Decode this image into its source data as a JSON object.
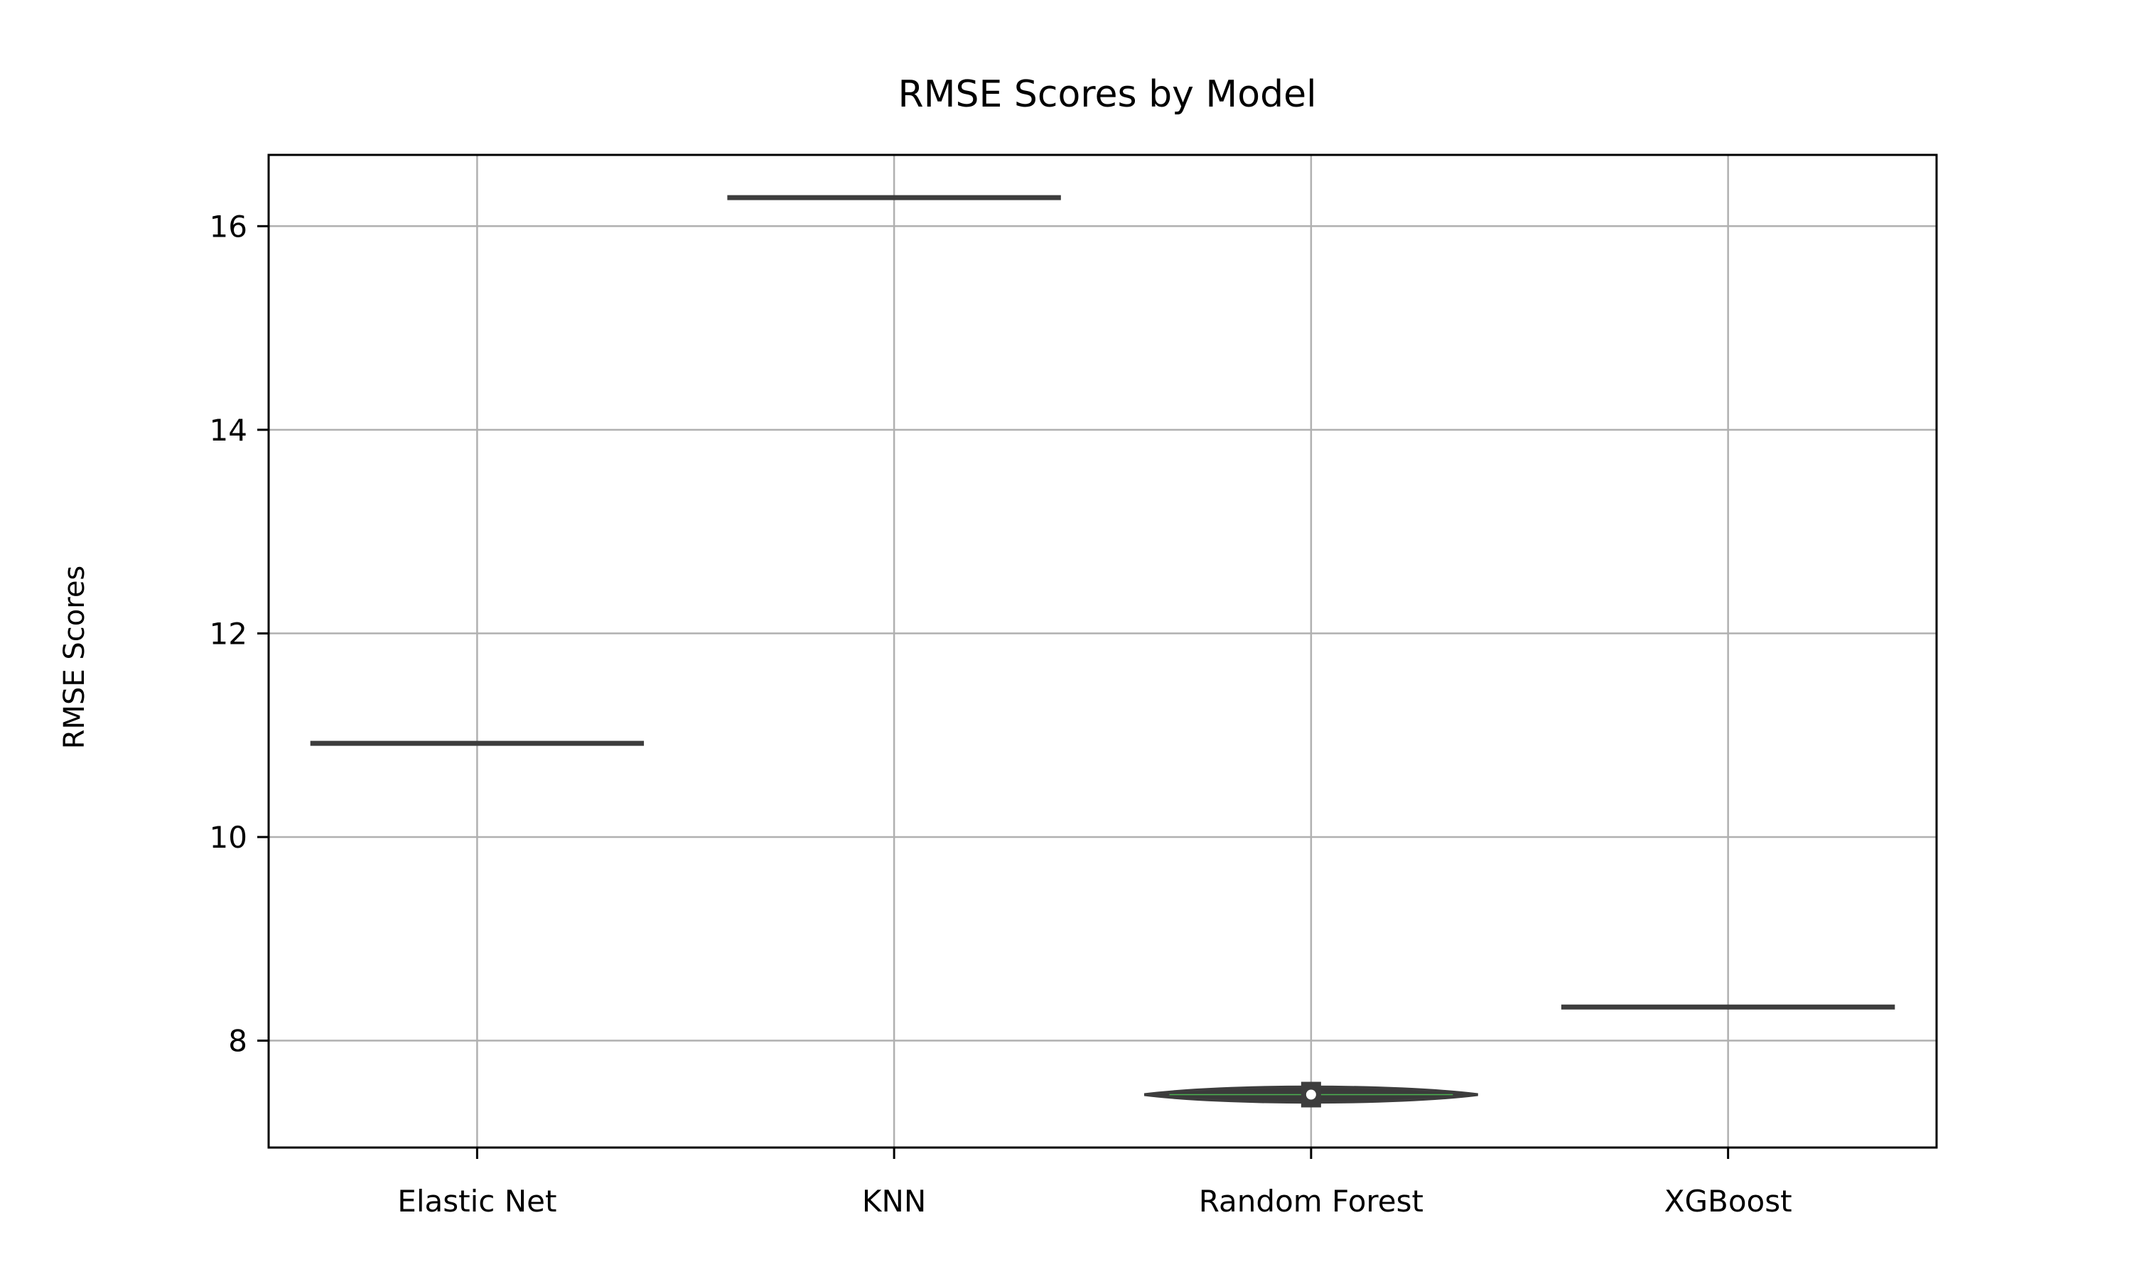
{
  "chart_data": {
    "type": "violin",
    "title": "RMSE Scores by Model",
    "xlabel": "",
    "ylabel": "RMSE Scores",
    "categories": [
      "Elastic Net",
      "KNN",
      "Random Forest",
      "XGBoost"
    ],
    "values": [
      10.92,
      16.28,
      7.47,
      8.33
    ],
    "spread": [
      0,
      0,
      0.1,
      0
    ],
    "ylim": [
      6.95,
      16.7
    ],
    "yticks": [
      8,
      10,
      12,
      14,
      16
    ],
    "grid": true,
    "colors": {
      "violin_fill": "#3a3a3a",
      "line": "#3d3d3d",
      "median_marker": "#ffffff",
      "inner_bar": "#4caf50",
      "grid": "#b0b0b0",
      "axis": "#000000"
    }
  }
}
